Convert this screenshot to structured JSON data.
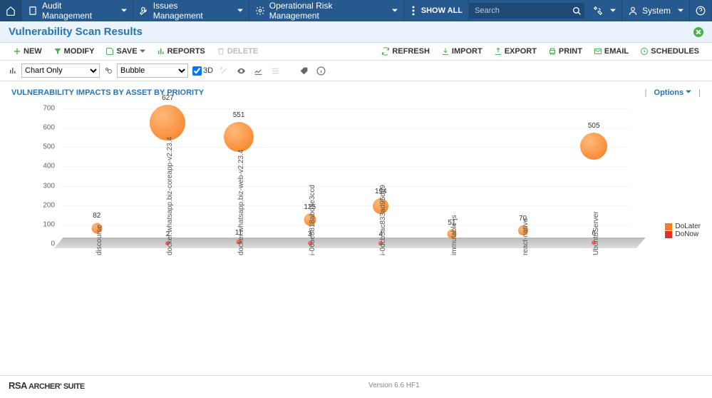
{
  "topnav": {
    "items": [
      {
        "label": "Audit Management"
      },
      {
        "label": "Issues Management"
      },
      {
        "label": "Operational Risk Management"
      }
    ],
    "show_all": "SHOW ALL",
    "search_placeholder": "Search",
    "user_label": "System"
  },
  "page": {
    "title": "Vulnerability Scan Results"
  },
  "toolbar": {
    "new": "NEW",
    "modify": "MODIFY",
    "save": "SAVE",
    "reports": "REPORTS",
    "delete": "DELETE",
    "refresh": "REFRESH",
    "import": "IMPORT",
    "export": "EXPORT",
    "print": "PRINT",
    "email": "EMAIL",
    "schedules": "SCHEDULES"
  },
  "controls": {
    "display_mode": "Chart Only",
    "chart_type": "Bubble",
    "three_d_label": "3D"
  },
  "chart": {
    "title": "VULNERABILITY IMPACTS BY ASSET BY PRIORITY",
    "options_label": "Options",
    "type": "bubble",
    "ylim": [
      0,
      700
    ],
    "ytick_step": 100,
    "bubble_color": "#f57c1f",
    "small_color": "#e03030",
    "grid_color": "#f5f5f5",
    "background_color": "#ffffff",
    "categories": [
      "discourse",
      "docker.whatsapp.biz-coreapp-v2.23.4",
      "docker.whatsapp.biz-web-v2.23.4",
      "i-06ae8818abd5e3ccd",
      "i-0dcb5ac833ad95d09",
      "immutable-js",
      "react-native",
      "UbuntuServer"
    ],
    "series": [
      {
        "name": "DoLater",
        "color": "#f57c1f",
        "points": [
          {
            "cat": 0,
            "value": 82,
            "size": 15
          },
          {
            "cat": 1,
            "value": 627,
            "size": 50
          },
          {
            "cat": 2,
            "value": 551,
            "size": 42
          },
          {
            "cat": 3,
            "value": 125,
            "size": 17
          },
          {
            "cat": 4,
            "value": 194,
            "size": 22
          },
          {
            "cat": 5,
            "value": 51,
            "size": 13
          },
          {
            "cat": 6,
            "value": 70,
            "size": 14
          },
          {
            "cat": 7,
            "value": 505,
            "size": 38
          }
        ]
      },
      {
        "name": "DoNow",
        "color": "#e03030",
        "points": [
          {
            "cat": 1,
            "value": 2,
            "size": 6
          },
          {
            "cat": 2,
            "value": 11,
            "size": 7
          },
          {
            "cat": 3,
            "value": 3,
            "size": 6
          },
          {
            "cat": 4,
            "value": 4,
            "size": 6
          },
          {
            "cat": 7,
            "value": 6,
            "size": 6
          }
        ]
      }
    ],
    "legend": [
      {
        "label": "DoLater",
        "color": "#f57c1f"
      },
      {
        "label": "DoNow",
        "color": "#e03030"
      }
    ]
  },
  "footer": {
    "brand_prefix": "RSA",
    "brand_suffix": " ARCHER' SUITE",
    "version": "Version 6.6 HF1"
  }
}
